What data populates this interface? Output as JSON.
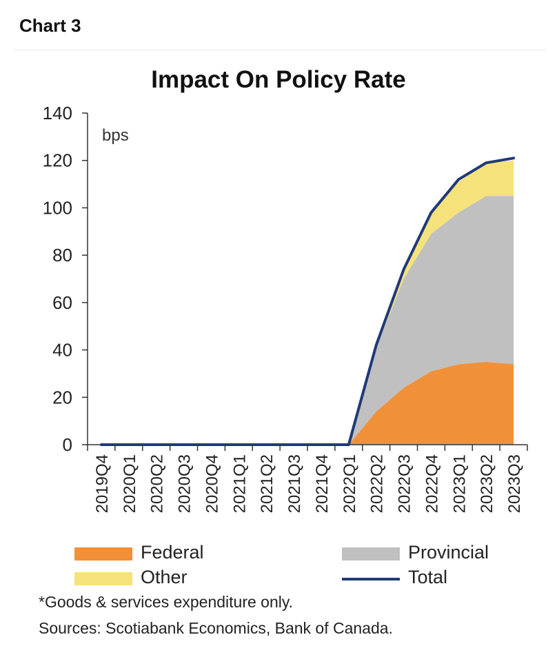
{
  "header": {
    "chart_label": "Chart 3"
  },
  "chart_data": {
    "type": "area",
    "title": "Impact On Policy Rate",
    "ylabel": "bps",
    "xlabel": "",
    "ylim": [
      0,
      140
    ],
    "yticks": [
      0,
      20,
      40,
      60,
      80,
      100,
      120,
      140
    ],
    "categories": [
      "2019Q4",
      "2020Q1",
      "2020Q2",
      "2020Q3",
      "2020Q4",
      "2021Q1",
      "2021Q2",
      "2021Q3",
      "2021Q4",
      "2022Q1",
      "2022Q2",
      "2022Q3",
      "2022Q4",
      "2023Q1",
      "2023Q2",
      "2023Q3"
    ],
    "stacked": true,
    "series": [
      {
        "name": "Federal",
        "kind": "area",
        "color": "#f0913a",
        "values": [
          0,
          0,
          0,
          0,
          0,
          0,
          0,
          0,
          0,
          0,
          14,
          24,
          31,
          34,
          35,
          34
        ]
      },
      {
        "name": "Provincial",
        "kind": "area",
        "color": "#c0c0c0",
        "values": [
          0,
          0,
          0,
          0,
          0,
          0,
          0,
          0,
          0,
          0,
          27,
          46,
          58,
          64,
          70,
          71
        ]
      },
      {
        "name": "Other",
        "kind": "area",
        "color": "#f5e27a",
        "values": [
          0,
          0,
          0,
          0,
          0,
          0,
          0,
          0,
          0,
          0,
          1,
          4,
          9,
          13,
          14,
          15
        ]
      },
      {
        "name": "Total",
        "kind": "line",
        "color": "#1f3a78",
        "values": [
          0,
          0,
          0,
          0,
          0,
          0,
          0,
          0,
          0,
          0,
          42,
          74,
          98,
          112,
          119,
          121
        ]
      }
    ],
    "legend_position": "bottom",
    "grid": false
  },
  "footnote": "*Goods & services expenditure only.",
  "sources": "Sources: Scotiabank Economics, Bank of Canada."
}
